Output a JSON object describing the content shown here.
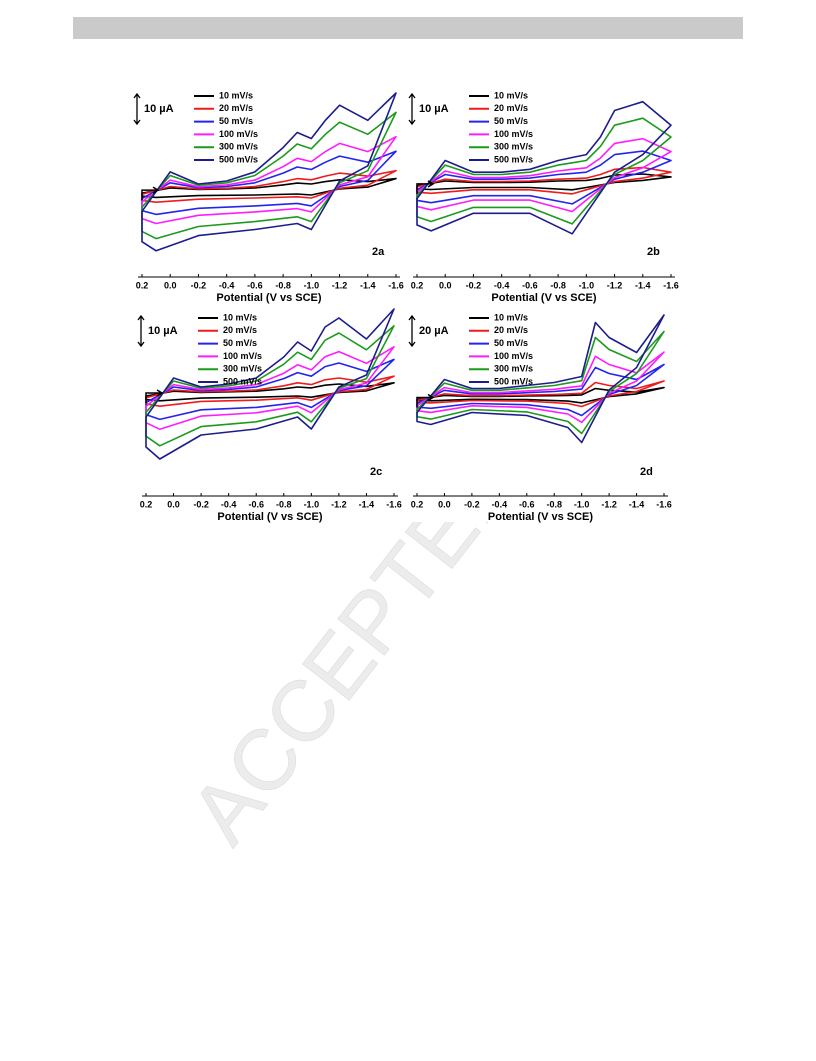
{
  "watermark": "ACCEPTED M",
  "chart_data": [
    {
      "type": "line",
      "panel_label": "2a",
      "scale_bar_label": "10 µA",
      "x_label": "Potential (V vs SCE)",
      "x": [
        0.2,
        0,
        -0.2,
        -0.4,
        -0.6,
        -0.8,
        -0.9,
        -1,
        -1.1,
        -1.2,
        -1.4,
        -1.6,
        -1.4,
        -1.2,
        -1,
        -0.9,
        -0.6,
        -0.2,
        0.1,
        0.2
      ],
      "xlim": [
        0.2,
        -1.6
      ],
      "ylim": [
        -27,
        33
      ],
      "xticks": [
        0.2,
        {
          "value": 0,
          "label": "0.0"
        },
        -0.2,
        -0.4,
        -0.6,
        -0.8,
        {
          "value": -1,
          "label": "-1.0"
        },
        -1.2,
        -1.4,
        -1.6
      ],
      "series": [
        {
          "name": "10 mV/s",
          "color": "#000000",
          "values": [
            -1,
            0.7,
            0.2,
            0.4,
            0.7,
            1.7,
            2.3,
            2,
            2.8,
            3.4,
            2.8,
            3.8,
            1,
            0.4,
            -1.6,
            -1.3,
            -1.6,
            -1.8,
            -2.4,
            -2
          ]
        },
        {
          "name": "20 mV/s",
          "color": "#ee1c1c",
          "values": [
            -1.4,
            1.2,
            0.4,
            0.6,
            1.2,
            2.8,
            3.8,
            3.4,
            4.6,
            5.6,
            4.6,
            6.4,
            1.6,
            0.6,
            -2.6,
            -2.2,
            -2.6,
            -3,
            -4,
            -3.4
          ]
        },
        {
          "name": "50 mV/s",
          "color": "#2424ee",
          "values": [
            -2.8,
            2.4,
            0.8,
            1.2,
            2.4,
            5.6,
            7.6,
            6.8,
            9.2,
            11.2,
            9.2,
            12.8,
            3.2,
            1.2,
            -5.2,
            -4.4,
            -5.2,
            -6,
            -8,
            -6.8
          ]
        },
        {
          "name": "100 mV/s",
          "color": "#ff1cff",
          "values": [
            -3.9,
            3.3,
            1.1,
            1.7,
            3.3,
            7.7,
            10.5,
            9.4,
            12.7,
            15.4,
            12.7,
            17.6,
            4.4,
            1.7,
            -7.2,
            -6.1,
            -7.2,
            -8.3,
            -11,
            -9.4
          ]
        },
        {
          "name": "300 mV/s",
          "color": "#1c9a1c",
          "values": [
            -5.6,
            4.8,
            1.6,
            2.4,
            4.8,
            11.2,
            15.2,
            13.6,
            18.4,
            22.4,
            18.4,
            25.6,
            6.4,
            2.4,
            -10.4,
            -8.8,
            -10.4,
            -12,
            -16,
            -13.6
          ]
        },
        {
          "name": "500 mV/s",
          "color": "#1c1c8c",
          "values": [
            -7,
            6,
            2,
            3,
            6,
            14,
            19,
            17,
            23,
            28,
            23,
            32,
            8,
            3,
            -13,
            -11,
            -13,
            -15,
            -20,
            -17
          ]
        }
      ]
    },
    {
      "type": "line",
      "panel_label": "2b",
      "scale_bar_label": "10 µA",
      "x_label": "Potential (V vs SCE)",
      "x": [
        0.2,
        0,
        -0.2,
        -0.4,
        -0.6,
        -0.8,
        -0.9,
        -1,
        -1.1,
        -1.2,
        -1.4,
        -1.6,
        -1.4,
        -1.2,
        -1,
        -0.9,
        -0.6,
        -0.2,
        0.1,
        0.2
      ],
      "xlim": [
        0.2,
        -1.6
      ],
      "ylim": [
        -30,
        32
      ],
      "xticks": [
        0.2,
        {
          "value": 0,
          "label": "0.0"
        },
        -0.2,
        -0.4,
        -0.6,
        -0.8,
        {
          "value": -1,
          "label": "-1.0"
        },
        -1.2,
        -1.4,
        -1.6
      ],
      "series": [
        {
          "name": "10 mV/s",
          "color": "#000000",
          "values": [
            -0.6,
            1,
            0.5,
            0.5,
            0.6,
            1,
            1.1,
            1.2,
            1.9,
            3,
            3.4,
            2.4,
            1.2,
            0.5,
            -1.2,
            -2,
            -1.2,
            -1.2,
            -1.9,
            -1.7
          ]
        },
        {
          "name": "20 mV/s",
          "color": "#ee1c1c",
          "values": [
            -1,
            1.6,
            0.8,
            0.8,
            1,
            1.6,
            1.8,
            2,
            3.2,
            5,
            5.6,
            4,
            2,
            0.8,
            -2,
            -3.4,
            -2,
            -2,
            -3.2,
            -2.8
          ]
        },
        {
          "name": "50 mV/s",
          "color": "#2424ee",
          "values": [
            -2,
            3.2,
            1.6,
            1.6,
            2,
            3.2,
            3.6,
            4,
            6.4,
            10,
            11.2,
            8,
            4,
            1.6,
            -4,
            -6.8,
            -4,
            -4,
            -6.4,
            -5.6
          ]
        },
        {
          "name": "100 mV/s",
          "color": "#ff1cff",
          "values": [
            -2.8,
            4.4,
            2.2,
            2.2,
            2.8,
            4.4,
            5,
            5.5,
            8.8,
            13.8,
            15.4,
            11,
            5.5,
            2.2,
            -5.5,
            -9.4,
            -5.5,
            -5.5,
            -8.8,
            -7.7
          ]
        },
        {
          "name": "300 mV/s",
          "color": "#1c9a1c",
          "values": [
            -4,
            6.4,
            3.2,
            3.2,
            4,
            6.4,
            7.2,
            8,
            12.8,
            20,
            22.4,
            16,
            8,
            3.2,
            -8,
            -13.6,
            -8,
            -8,
            -12.8,
            -11.2
          ]
        },
        {
          "name": "500 mV/s",
          "color": "#1c1c8c",
          "values": [
            -5,
            8,
            4,
            4,
            5,
            8,
            9,
            10,
            16,
            25,
            28,
            20,
            10,
            4,
            -10,
            -17,
            -10,
            -10,
            -16,
            -14
          ]
        }
      ]
    },
    {
      "type": "line",
      "panel_label": "2c",
      "scale_bar_label": "10 µA",
      "x_label": "Potential (V vs SCE)",
      "x": [
        0.2,
        0,
        -0.2,
        -0.4,
        -0.6,
        -0.8,
        -0.9,
        -1,
        -1.1,
        -1.2,
        -1.4,
        -1.6,
        -1.4,
        -1.2,
        -1,
        -0.9,
        -0.6,
        -0.2,
        0.1,
        0.2
      ],
      "xlim": [
        0.2,
        -1.6
      ],
      "ylim": [
        -33,
        27
      ],
      "xticks": [
        0.2,
        {
          "value": 0,
          "label": "0.0"
        },
        -0.2,
        -0.4,
        -0.6,
        -0.8,
        {
          "value": -1,
          "label": "-1.0"
        },
        -1.2,
        -1.4,
        -1.6
      ],
      "series": [
        {
          "name": "10 mV/s",
          "color": "#000000",
          "values": [
            -1,
            0.6,
            0.2,
            0.4,
            0.6,
            1.4,
            2,
            1.7,
            2.6,
            3,
            2.2,
            3.4,
            0.7,
            0.2,
            -1.4,
            -1,
            -1.4,
            -1.7,
            -2.6,
            -2.2
          ]
        },
        {
          "name": "20 mV/s",
          "color": "#ee1c1c",
          "values": [
            -1.6,
            1,
            0.4,
            0.6,
            1,
            2.4,
            3.4,
            2.8,
            4.4,
            5,
            3.6,
            5.6,
            1.2,
            0.4,
            -2.4,
            -1.6,
            -2.4,
            -2.8,
            -4.4,
            -3.6
          ]
        },
        {
          "name": "50 mV/s",
          "color": "#2424ee",
          "values": [
            -3.2,
            2,
            0.8,
            1.2,
            2,
            4.8,
            6.8,
            5.6,
            8.8,
            10,
            7.2,
            11.2,
            2.4,
            0.8,
            -4.8,
            -3.2,
            -4.8,
            -5.6,
            -8.8,
            -7.2
          ]
        },
        {
          "name": "100 mV/s",
          "color": "#ff1cff",
          "values": [
            -4.4,
            2.8,
            1.1,
            1.7,
            2.8,
            6.6,
            9.4,
            7.7,
            12.1,
            13.8,
            9.9,
            15.4,
            3.3,
            1.1,
            -6.6,
            -4.4,
            -6.6,
            -7.7,
            -12.1,
            -9.9
          ]
        },
        {
          "name": "300 mV/s",
          "color": "#1c9a1c",
          "values": [
            -6.4,
            4,
            1.6,
            2.4,
            4,
            9.6,
            13.6,
            11.2,
            17.6,
            20,
            14.4,
            22.4,
            4.8,
            1.6,
            -9.6,
            -6.4,
            -9.6,
            -11.2,
            -17.6,
            -14.4
          ]
        },
        {
          "name": "500 mV/s",
          "color": "#1c1c8c",
          "values": [
            -8,
            5,
            2,
            3,
            5,
            12,
            17,
            14,
            22,
            25,
            18,
            28,
            6,
            2,
            -12,
            -8,
            -12,
            -14,
            -22,
            -18
          ]
        }
      ]
    },
    {
      "type": "line",
      "panel_label": "2d",
      "scale_bar_label": "20 µA",
      "x_label": "Potential (V vs SCE)",
      "x": [
        0.2,
        0,
        -0.2,
        -0.4,
        -0.6,
        -0.8,
        -0.9,
        -1,
        -1.1,
        -1.2,
        -1.4,
        -1.6,
        -1.4,
        -1.2,
        -1,
        -0.9,
        -0.6,
        -0.2,
        0.1,
        0.2
      ],
      "xlim": [
        0.2,
        -1.6
      ],
      "ylim": [
        -63,
        57
      ],
      "xticks": [
        0.2,
        {
          "value": 0,
          "label": "0.0"
        },
        -0.2,
        -0.4,
        -0.6,
        -0.8,
        {
          "value": -1,
          "label": "-1.0"
        },
        -1.2,
        -1.4,
        -1.6
      ],
      "series": [
        {
          "name": "10 mV/s",
          "color": "#000000",
          "values": [
            -1.2,
            1.4,
            0.7,
            0.7,
            1,
            1.2,
            1.4,
            1.7,
            6,
            4.8,
            3.6,
            6.6,
            2.4,
            0.6,
            -3.6,
            -2.4,
            -1.4,
            -1.2,
            -2.2,
            -1.9
          ]
        },
        {
          "name": "20 mV/s",
          "color": "#ee1c1c",
          "values": [
            -2,
            2.4,
            1.2,
            1.2,
            1.6,
            2,
            2.4,
            2.8,
            10,
            8,
            6,
            11,
            4,
            1,
            -6,
            -4,
            -2.4,
            -2,
            -3.6,
            -3.2
          ]
        },
        {
          "name": "50 mV/s",
          "color": "#2424ee",
          "values": [
            -4,
            4.8,
            2.4,
            2.4,
            3.2,
            4,
            4.8,
            5.6,
            20,
            16,
            12,
            22,
            8,
            2,
            -12,
            -8,
            -4.8,
            -4,
            -7.2,
            -6.4
          ]
        },
        {
          "name": "100 mV/s",
          "color": "#ff1cff",
          "values": [
            -5.5,
            6.6,
            3.3,
            3.3,
            4.4,
            5.5,
            6.6,
            7.7,
            27.5,
            22,
            16.5,
            30.3,
            11,
            2.8,
            -16.5,
            -11,
            -6.6,
            -5.5,
            -9.9,
            -8.8
          ]
        },
        {
          "name": "300 mV/s",
          "color": "#1c9a1c",
          "values": [
            -8,
            9.6,
            4.8,
            4.8,
            6.4,
            8,
            9.6,
            11.2,
            40,
            32,
            24,
            44,
            16,
            4,
            -24,
            -16,
            -9.6,
            -8,
            -14.4,
            -12.8
          ]
        },
        {
          "name": "500 mV/s",
          "color": "#1c1c8c",
          "values": [
            -10,
            12,
            6,
            6,
            8,
            10,
            12,
            14,
            50,
            40,
            30,
            55,
            20,
            5,
            -30,
            -20,
            -12,
            -10,
            -18,
            -16
          ]
        }
      ]
    }
  ]
}
